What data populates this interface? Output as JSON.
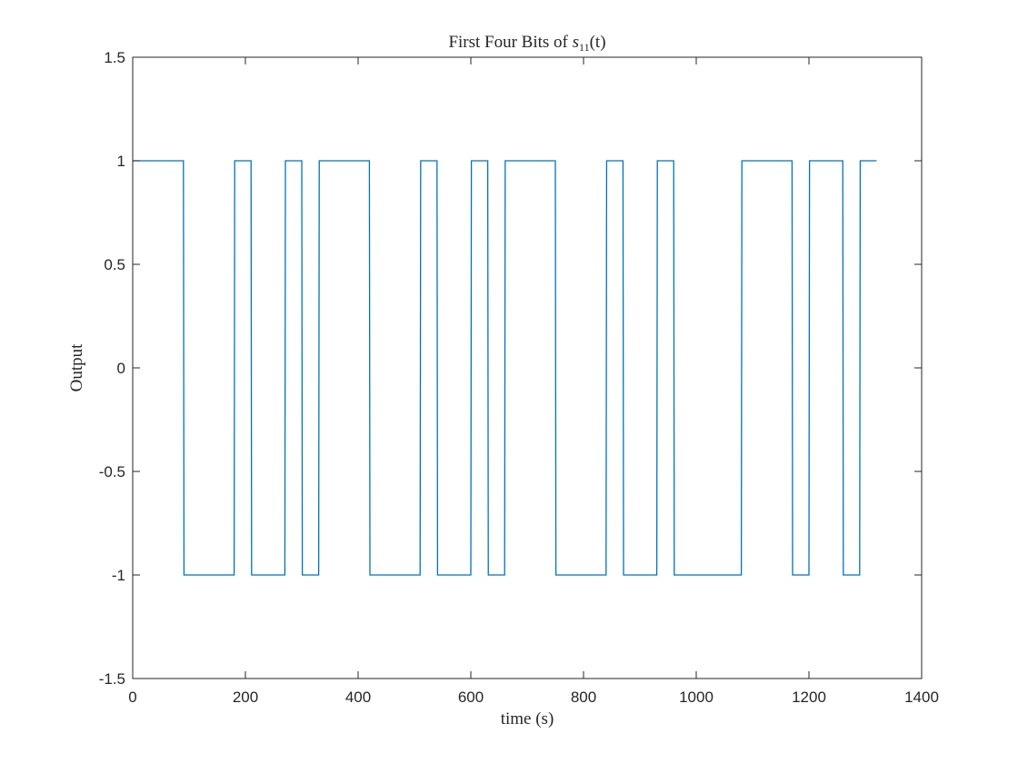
{
  "chart_data": {
    "type": "line",
    "title": {
      "prefix": "First Four Bits of ",
      "symbol": "s",
      "subscript": "11",
      "suffix": "(t)"
    },
    "xlabel": "time (s)",
    "ylabel": "Output",
    "xlim": [
      0,
      1400
    ],
    "ylim": [
      -1.5,
      1.5
    ],
    "xticks": [
      0,
      200,
      400,
      600,
      800,
      1000,
      1200,
      1400
    ],
    "yticks": [
      -1.5,
      -1,
      -0.5,
      0,
      0.5,
      1,
      1.5
    ],
    "xtick_labels": [
      "0",
      "200",
      "400",
      "600",
      "800",
      "1000",
      "1200",
      "1400"
    ],
    "ytick_labels": [
      "-1.5",
      "-1",
      "-0.5",
      "0",
      "0.5",
      "1",
      "1.5"
    ],
    "grid": false,
    "line_color": "#0072BD",
    "series": [
      {
        "x": [
          0,
          90,
          91,
          180,
          181,
          210,
          211,
          270,
          271,
          300,
          301,
          330,
          331,
          420,
          421,
          510,
          511,
          540,
          541,
          600,
          601,
          630,
          631,
          660,
          661,
          750,
          751,
          840,
          841,
          870,
          871,
          930,
          931,
          960,
          961,
          1080,
          1081,
          1170,
          1171,
          1200,
          1201,
          1260,
          1261,
          1290,
          1291,
          1320
        ],
        "y": [
          1,
          1,
          -1,
          -1,
          1,
          1,
          -1,
          -1,
          1,
          1,
          -1,
          -1,
          1,
          1,
          -1,
          -1,
          1,
          1,
          -1,
          -1,
          1,
          1,
          -1,
          -1,
          1,
          1,
          -1,
          -1,
          1,
          1,
          -1,
          -1,
          1,
          1,
          -1,
          -1,
          1,
          1,
          -1,
          -1,
          1,
          1,
          -1,
          -1,
          1,
          1
        ]
      }
    ]
  }
}
